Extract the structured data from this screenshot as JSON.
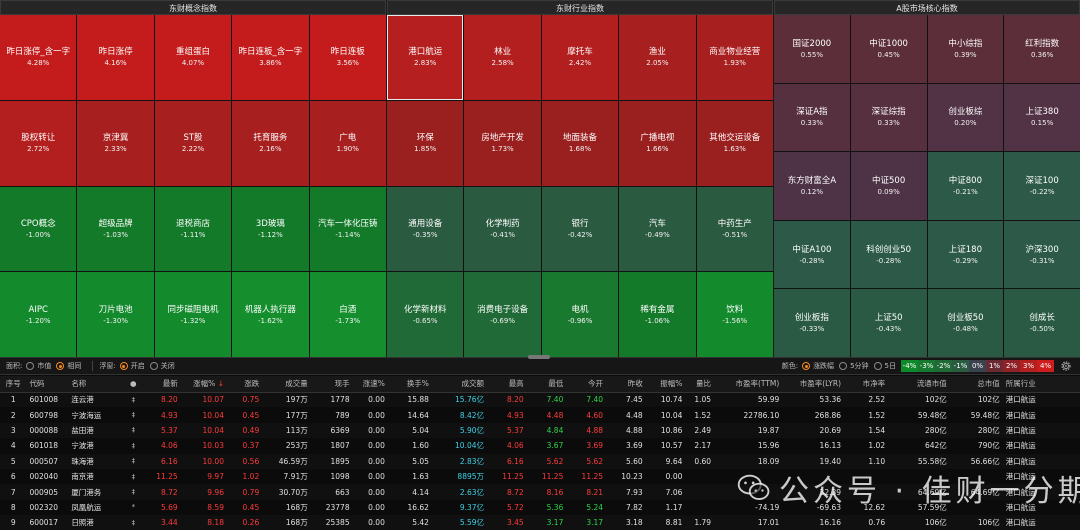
{
  "panels": [
    {
      "title": "东财概念指数",
      "cols": 5,
      "rows": 4,
      "cells": [
        {
          "name": "昨日涨停_含一字",
          "pct": "4.28%",
          "color": "#c41c1c"
        },
        {
          "name": "昨日涨停",
          "pct": "4.16%",
          "color": "#c41c1c"
        },
        {
          "name": "重组蛋白",
          "pct": "4.07%",
          "color": "#c41c1c"
        },
        {
          "name": "昨日连板_含一字",
          "pct": "3.86%",
          "color": "#c41c1c"
        },
        {
          "name": "昨日连板",
          "pct": "3.56%",
          "color": "#c41c1c"
        },
        {
          "name": "股权转让",
          "pct": "2.72%",
          "color": "#b31e1e"
        },
        {
          "name": "京津冀",
          "pct": "2.33%",
          "color": "#a81f1f"
        },
        {
          "name": "ST股",
          "pct": "2.22%",
          "color": "#a81f1f"
        },
        {
          "name": "托育服务",
          "pct": "2.16%",
          "color": "#a81f1f"
        },
        {
          "name": "广电",
          "pct": "1.90%",
          "color": "#a81f1f"
        },
        {
          "name": "CPO概念",
          "pct": "-1.00%",
          "color": "#137a2a"
        },
        {
          "name": "超级品牌",
          "pct": "-1.03%",
          "color": "#137a2a"
        },
        {
          "name": "退税商店",
          "pct": "-1.11%",
          "color": "#137a2a"
        },
        {
          "name": "3D玻璃",
          "pct": "-1.12%",
          "color": "#137a2a"
        },
        {
          "name": "汽车一体化压铸",
          "pct": "-1.14%",
          "color": "#137a2a"
        },
        {
          "name": "AIPC",
          "pct": "-1.20%",
          "color": "#138a2c"
        },
        {
          "name": "刀片电池",
          "pct": "-1.30%",
          "color": "#138a2c"
        },
        {
          "name": "同步磁阻电机",
          "pct": "-1.32%",
          "color": "#138a2c"
        },
        {
          "name": "机器人执行器",
          "pct": "-1.62%",
          "color": "#158f2e"
        },
        {
          "name": "白酒",
          "pct": "-1.73%",
          "color": "#158f2e"
        }
      ]
    },
    {
      "title": "东财行业指数",
      "cols": 5,
      "rows": 4,
      "cells": [
        {
          "name": "港口航运",
          "pct": "2.83%",
          "color": "#b51f1f",
          "selected": true
        },
        {
          "name": "林业",
          "pct": "2.58%",
          "color": "#b31e1e"
        },
        {
          "name": "摩托车",
          "pct": "2.42%",
          "color": "#b31e1e"
        },
        {
          "name": "渔业",
          "pct": "2.05%",
          "color": "#a81f1f"
        },
        {
          "name": "商业物业经营",
          "pct": "1.93%",
          "color": "#a81f1f"
        },
        {
          "name": "环保",
          "pct": "1.85%",
          "color": "#9a1f1f"
        },
        {
          "name": "房地产开发",
          "pct": "1.73%",
          "color": "#9a1f1f"
        },
        {
          "name": "地面装备",
          "pct": "1.68%",
          "color": "#9a1f1f"
        },
        {
          "name": "广播电视",
          "pct": "1.66%",
          "color": "#9a1f1f"
        },
        {
          "name": "其他交运设备",
          "pct": "1.63%",
          "color": "#9a1f1f"
        },
        {
          "name": "通用设备",
          "pct": "-0.35%",
          "color": "#2a5a40"
        },
        {
          "name": "化学制药",
          "pct": "-0.41%",
          "color": "#2a5a40"
        },
        {
          "name": "银行",
          "pct": "-0.42%",
          "color": "#2a5a40"
        },
        {
          "name": "汽车",
          "pct": "-0.49%",
          "color": "#2a5a40"
        },
        {
          "name": "中药生产",
          "pct": "-0.51%",
          "color": "#2a5a40"
        },
        {
          "name": "化学新材料",
          "pct": "-0.65%",
          "color": "#1f6a36"
        },
        {
          "name": "消费电子设备",
          "pct": "-0.69%",
          "color": "#1f6a36"
        },
        {
          "name": "电机",
          "pct": "-0.96%",
          "color": "#197a2f"
        },
        {
          "name": "稀有金属",
          "pct": "-1.06%",
          "color": "#137a2a"
        },
        {
          "name": "饮料",
          "pct": "-1.56%",
          "color": "#138a2c"
        }
      ]
    },
    {
      "title": "A股市场核心指数",
      "cols": 4,
      "rows": 5,
      "cells": [
        {
          "name": "国证2000",
          "pct": "0.55%",
          "color": "#5c2e3a"
        },
        {
          "name": "中证1000",
          "pct": "0.45%",
          "color": "#5c2e3a"
        },
        {
          "name": "中小综指",
          "pct": "0.39%",
          "color": "#5c2e3a"
        },
        {
          "name": "红利指数",
          "pct": "0.36%",
          "color": "#5c2e3a"
        },
        {
          "name": "深证A指",
          "pct": "0.33%",
          "color": "#573040"
        },
        {
          "name": "深证综指",
          "pct": "0.33%",
          "color": "#573040"
        },
        {
          "name": "创业板综",
          "pct": "0.20%",
          "color": "#523245"
        },
        {
          "name": "上证380",
          "pct": "0.15%",
          "color": "#523245"
        },
        {
          "name": "东方财富全A",
          "pct": "0.12%",
          "color": "#4e3347"
        },
        {
          "name": "中证500",
          "pct": "0.09%",
          "color": "#4e3347"
        },
        {
          "name": "中证800",
          "pct": "-0.21%",
          "color": "#2d5a48"
        },
        {
          "name": "深证100",
          "pct": "-0.22%",
          "color": "#2d5a48"
        },
        {
          "name": "中证A100",
          "pct": "-0.28%",
          "color": "#2d5a48"
        },
        {
          "name": "科创创业50",
          "pct": "-0.28%",
          "color": "#2d5a48"
        },
        {
          "name": "上证180",
          "pct": "-0.29%",
          "color": "#2d5a48"
        },
        {
          "name": "沪深300",
          "pct": "-0.31%",
          "color": "#2d5a48"
        },
        {
          "name": "创业板指",
          "pct": "-0.33%",
          "color": "#2a5a44"
        },
        {
          "name": "上证50",
          "pct": "-0.43%",
          "color": "#2a5a44"
        },
        {
          "name": "创业板50",
          "pct": "-0.48%",
          "color": "#2a5a44"
        },
        {
          "name": "创成长",
          "pct": "-0.50%",
          "color": "#2a5a44"
        }
      ]
    }
  ],
  "controls": {
    "area_label": "面积:",
    "area_opt1": "市值",
    "area_opt2": "相同",
    "float_label": "浮窗:",
    "float_opt1": "开启",
    "float_opt2": "关闭",
    "color_label": "颜色:",
    "color_opt1": "涨跌幅",
    "color_opt2": "5分钟",
    "color_opt3": "5日",
    "legend": [
      {
        "label": "-4%",
        "color": "#0f8a2a"
      },
      {
        "label": "-3%",
        "color": "#17782f"
      },
      {
        "label": "-2%",
        "color": "#1f6a36"
      },
      {
        "label": "-1%",
        "color": "#2a5a40"
      },
      {
        "label": "0%",
        "color": "#3a4250"
      },
      {
        "label": "1%",
        "color": "#6a2a33"
      },
      {
        "label": "2%",
        "color": "#8e2226"
      },
      {
        "label": "3%",
        "color": "#b31e1e"
      },
      {
        "label": "4%",
        "color": "#cf1c1c"
      }
    ]
  },
  "table": {
    "headers": [
      "序号",
      "代码",
      "名称",
      "●",
      "最新",
      "涨幅%",
      "涨跌",
      "成交量",
      "现手",
      "涨速%",
      "换手%",
      "成交额",
      "最高",
      "最低",
      "今开",
      "昨收",
      "振幅%",
      "量比",
      "市盈率(TTM)",
      "市盈率(LYR)",
      "市净率",
      "流通市值",
      "总市值",
      "所属行业"
    ],
    "rows": [
      [
        "1",
        "601008",
        "连云港",
        "‡",
        "8.20",
        "10.07",
        "0.75",
        "197万",
        "1778",
        "0.00",
        "15.88",
        "15.76亿",
        "8.20",
        "7.40",
        "7.40",
        "7.45",
        "10.74",
        "1.05",
        "59.99",
        "53.36",
        "2.52",
        "102亿",
        "102亿",
        "港口航运"
      ],
      [
        "2",
        "600798",
        "宁波海运",
        "‡",
        "4.93",
        "10.04",
        "0.45",
        "177万",
        "789",
        "0.00",
        "14.64",
        "8.42亿",
        "4.93",
        "4.48",
        "4.60",
        "4.48",
        "10.04",
        "1.52",
        "22786.10",
        "268.86",
        "1.52",
        "59.48亿",
        "59.48亿",
        "港口航运"
      ],
      [
        "3",
        "000088",
        "盐田港",
        "‡",
        "5.37",
        "10.04",
        "0.49",
        "113万",
        "6369",
        "0.00",
        "5.04",
        "5.90亿",
        "5.37",
        "4.84",
        "4.88",
        "4.88",
        "10.86",
        "2.49",
        "19.87",
        "20.69",
        "1.54",
        "280亿",
        "280亿",
        "港口航运"
      ],
      [
        "4",
        "601018",
        "宁波港",
        "‡",
        "4.06",
        "10.03",
        "0.37",
        "253万",
        "1807",
        "0.00",
        "1.60",
        "10.04亿",
        "4.06",
        "3.67",
        "3.69",
        "3.69",
        "10.57",
        "2.17",
        "15.96",
        "16.13",
        "1.02",
        "642亿",
        "790亿",
        "港口航运"
      ],
      [
        "5",
        "000507",
        "珠海港",
        "‡",
        "6.16",
        "10.00",
        "0.56",
        "46.59万",
        "1895",
        "0.00",
        "5.05",
        "2.83亿",
        "6.16",
        "5.62",
        "5.62",
        "5.60",
        "9.64",
        "0.60",
        "18.09",
        "19.40",
        "1.10",
        "55.58亿",
        "56.66亿",
        "港口航运"
      ],
      [
        "6",
        "002040",
        "南京港",
        "‡",
        "11.25",
        "9.97",
        "1.02",
        "7.91万",
        "1098",
        "0.00",
        "1.63",
        "8895万",
        "11.25",
        "11.25",
        "11.25",
        "10.23",
        "0.00",
        "",
        "",
        "",
        "",
        "",
        "",
        "港口航运"
      ],
      [
        "7",
        "000905",
        "厦门港务",
        "‡",
        "8.72",
        "9.96",
        "0.79",
        "30.70万",
        "663",
        "0.00",
        "4.14",
        "2.63亿",
        "8.72",
        "8.16",
        "8.21",
        "7.93",
        "7.06",
        "",
        "",
        "32.39",
        "",
        "64.69亿",
        "64.69亿",
        "港口航运"
      ],
      [
        "8",
        "002320",
        "凤凰航运",
        "*",
        "5.69",
        "8.59",
        "0.45",
        "168万",
        "23778",
        "0.00",
        "16.62",
        "9.37亿",
        "5.72",
        "5.36",
        "5.24",
        "7.82",
        "1.17",
        "",
        "-74.19",
        "-69.63",
        "12.62",
        "57.59亿",
        "",
        "港口航运"
      ],
      [
        "9",
        "600017",
        "日照港",
        "‡",
        "3.44",
        "8.18",
        "0.26",
        "168万",
        "25385",
        "0.00",
        "5.42",
        "5.59亿",
        "3.45",
        "3.17",
        "3.17",
        "3.18",
        "8.81",
        "1.79",
        "17.01",
        "16.16",
        "0.76",
        "106亿",
        "106亿",
        "港口航运"
      ]
    ]
  },
  "watermark": {
    "text": "公众号 · 佳财一分期",
    "icon": "wechat-icon"
  }
}
